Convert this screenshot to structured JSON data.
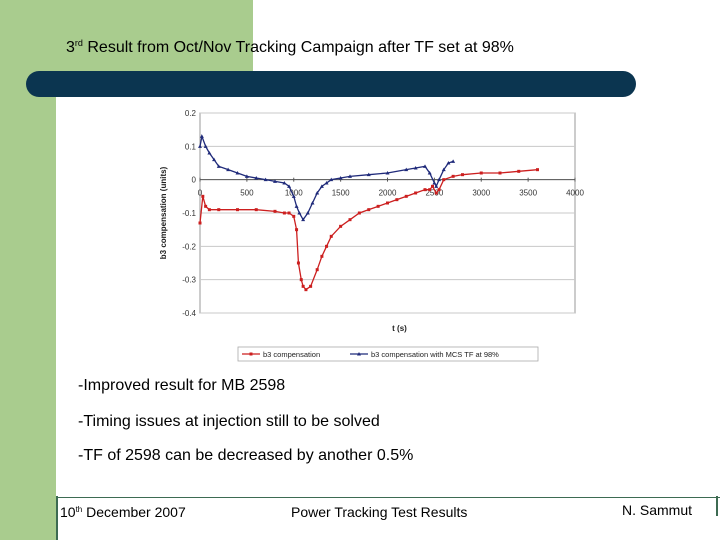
{
  "slide": {
    "title_prefix": "3",
    "title_sup": "rd",
    "title_rest": " Result from Oct/Nov Tracking Campaign after TF set at 98%"
  },
  "bullets": [
    "-Improved result for MB 2598",
    "-Timing issues at injection still to be solved",
    "-TF of 2598 can be decreased by another 0.5%"
  ],
  "footer": {
    "date_day": "10",
    "date_sup": "th",
    "date_rest": " December 2007",
    "center": "Power Tracking Test Results",
    "author": "N. Sammut"
  },
  "colors": {
    "accent_green": "#a9cc8e",
    "title_bar": "#0b3550",
    "series_red": "#cc1f1f",
    "series_blue": "#1f2a7a"
  },
  "chart_data": {
    "type": "line",
    "xlabel": "t (s)",
    "ylabel": "b3 compensation (units)",
    "xlim": [
      0,
      4000
    ],
    "ylim": [
      -0.4,
      0.2
    ],
    "x_ticks": [
      0,
      500,
      1000,
      1500,
      2000,
      2500,
      3000,
      3500,
      4000
    ],
    "x_tick_labels": [
      "0",
      "500",
      "1000",
      "1500",
      "2000",
      "2500",
      "3000",
      "3500",
      "4000"
    ],
    "y_ticks": [
      0.2,
      0.1,
      0,
      -0.1,
      -0.2,
      -0.3,
      -0.4
    ],
    "y_tick_labels": [
      "0.2",
      "0.1",
      "0",
      "-0.1",
      "-0.2",
      "-0.3",
      "-0.4"
    ],
    "legend_position": "bottom",
    "series": [
      {
        "name": "b3 compensation",
        "marker": "square",
        "points": [
          [
            0,
            -0.13
          ],
          [
            30,
            -0.05
          ],
          [
            60,
            -0.08
          ],
          [
            100,
            -0.09
          ],
          [
            200,
            -0.09
          ],
          [
            400,
            -0.09
          ],
          [
            600,
            -0.09
          ],
          [
            800,
            -0.095
          ],
          [
            900,
            -0.1
          ],
          [
            950,
            -0.1
          ],
          [
            1000,
            -0.11
          ],
          [
            1030,
            -0.15
          ],
          [
            1050,
            -0.25
          ],
          [
            1080,
            -0.3
          ],
          [
            1100,
            -0.32
          ],
          [
            1130,
            -0.33
          ],
          [
            1180,
            -0.32
          ],
          [
            1250,
            -0.27
          ],
          [
            1300,
            -0.23
          ],
          [
            1350,
            -0.2
          ],
          [
            1400,
            -0.17
          ],
          [
            1500,
            -0.14
          ],
          [
            1600,
            -0.12
          ],
          [
            1700,
            -0.1
          ],
          [
            1800,
            -0.09
          ],
          [
            1900,
            -0.08
          ],
          [
            2000,
            -0.07
          ],
          [
            2100,
            -0.06
          ],
          [
            2200,
            -0.05
          ],
          [
            2300,
            -0.04
          ],
          [
            2400,
            -0.03
          ],
          [
            2450,
            -0.03
          ],
          [
            2480,
            -0.02
          ],
          [
            2520,
            -0.04
          ],
          [
            2550,
            -0.03
          ],
          [
            2600,
            0.0
          ],
          [
            2700,
            0.01
          ],
          [
            2800,
            0.015
          ],
          [
            3000,
            0.02
          ],
          [
            3200,
            0.02
          ],
          [
            3400,
            0.025
          ],
          [
            3600,
            0.03
          ]
        ]
      },
      {
        "name": "b3 compensation with MCS TF at 98%",
        "marker": "triangle",
        "points": [
          [
            0,
            0.1
          ],
          [
            20,
            0.13
          ],
          [
            60,
            0.1
          ],
          [
            100,
            0.08
          ],
          [
            150,
            0.06
          ],
          [
            200,
            0.04
          ],
          [
            300,
            0.03
          ],
          [
            400,
            0.02
          ],
          [
            500,
            0.01
          ],
          [
            600,
            0.005
          ],
          [
            700,
            0.0
          ],
          [
            800,
            -0.005
          ],
          [
            900,
            -0.01
          ],
          [
            950,
            -0.02
          ],
          [
            1000,
            -0.05
          ],
          [
            1030,
            -0.08
          ],
          [
            1060,
            -0.1
          ],
          [
            1100,
            -0.12
          ],
          [
            1150,
            -0.1
          ],
          [
            1200,
            -0.07
          ],
          [
            1250,
            -0.04
          ],
          [
            1300,
            -0.02
          ],
          [
            1350,
            -0.01
          ],
          [
            1400,
            0.0
          ],
          [
            1500,
            0.005
          ],
          [
            1600,
            0.01
          ],
          [
            1800,
            0.015
          ],
          [
            2000,
            0.02
          ],
          [
            2200,
            0.03
          ],
          [
            2300,
            0.035
          ],
          [
            2400,
            0.04
          ],
          [
            2450,
            0.02
          ],
          [
            2500,
            -0.01
          ],
          [
            2520,
            -0.02
          ],
          [
            2550,
            0.0
          ],
          [
            2600,
            0.03
          ],
          [
            2650,
            0.05
          ],
          [
            2700,
            0.055
          ]
        ]
      }
    ]
  }
}
